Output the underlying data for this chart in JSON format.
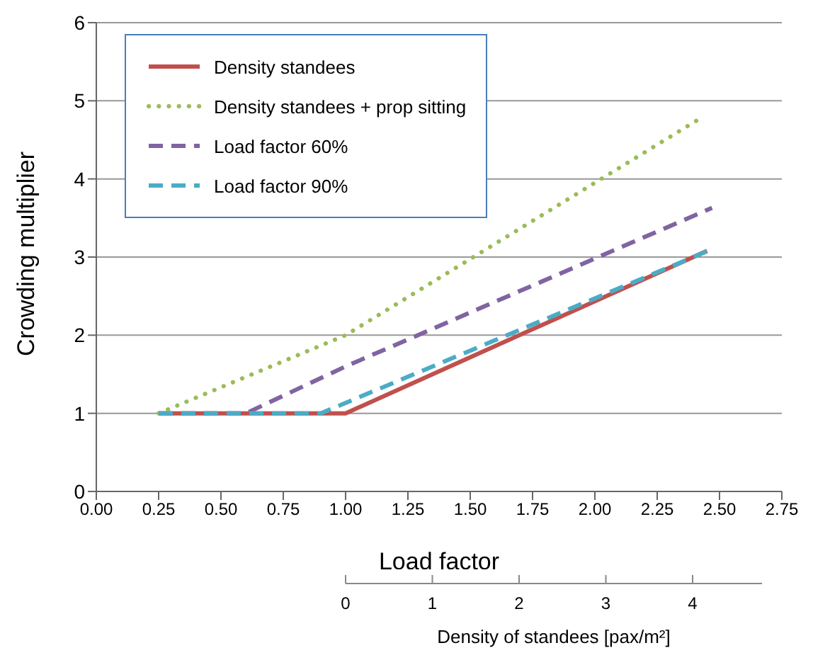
{
  "chart_data": {
    "type": "line",
    "xlabel": "Load factor",
    "ylabel": "Crowding multiplier",
    "x2label": "Density of standees [pax/m²]",
    "xlim": [
      0,
      2.75
    ],
    "xticks": [
      {
        "value": 0,
        "label": "0.00"
      },
      {
        "value": 0.25,
        "label": "0.25"
      },
      {
        "value": 0.5,
        "label": "0.50"
      },
      {
        "value": 0.75,
        "label": "0.75"
      },
      {
        "value": 1,
        "label": "1.00"
      },
      {
        "value": 1.25,
        "label": "1.25"
      },
      {
        "value": 1.5,
        "label": "1.50"
      },
      {
        "value": 1.75,
        "label": "1.75"
      },
      {
        "value": 2,
        "label": "2.00"
      },
      {
        "value": 2.25,
        "label": "2.25"
      },
      {
        "value": 2.5,
        "label": "2.50"
      },
      {
        "value": 2.75,
        "label": "2.75"
      }
    ],
    "ylim": [
      0,
      6
    ],
    "yticks": [
      0,
      1,
      2,
      3,
      4,
      5,
      6
    ],
    "x2lim": [
      0,
      4.8
    ],
    "x2ticks": [
      0,
      1,
      2,
      3,
      4
    ],
    "grid": "y",
    "legend": "top left",
    "marker": "none",
    "series": [
      {
        "name": "Density standees",
        "color": "#c0504d",
        "line_style": "solid",
        "x": [
          0.25,
          1.0,
          2.45
        ],
        "values": [
          1,
          1,
          3.08
        ]
      },
      {
        "name": "Density standees + prop sitting",
        "color": "#9bbb59",
        "line_style": "dotted",
        "x": [
          0.25,
          1.0,
          2.42
        ],
        "values": [
          1,
          2,
          4.77
        ]
      },
      {
        "name": "Load factor 60%",
        "color": "#8064a2",
        "line_style": "dashed",
        "x": [
          0.25,
          0.6,
          1.0,
          2.47
        ],
        "values": [
          1,
          1,
          1.6,
          3.63
        ]
      },
      {
        "name": "Load factor 90%",
        "color": "#4bacc6",
        "line_style": "dashed",
        "x": [
          0.25,
          0.9,
          2.47
        ],
        "values": [
          1,
          1,
          3.1
        ]
      }
    ]
  }
}
